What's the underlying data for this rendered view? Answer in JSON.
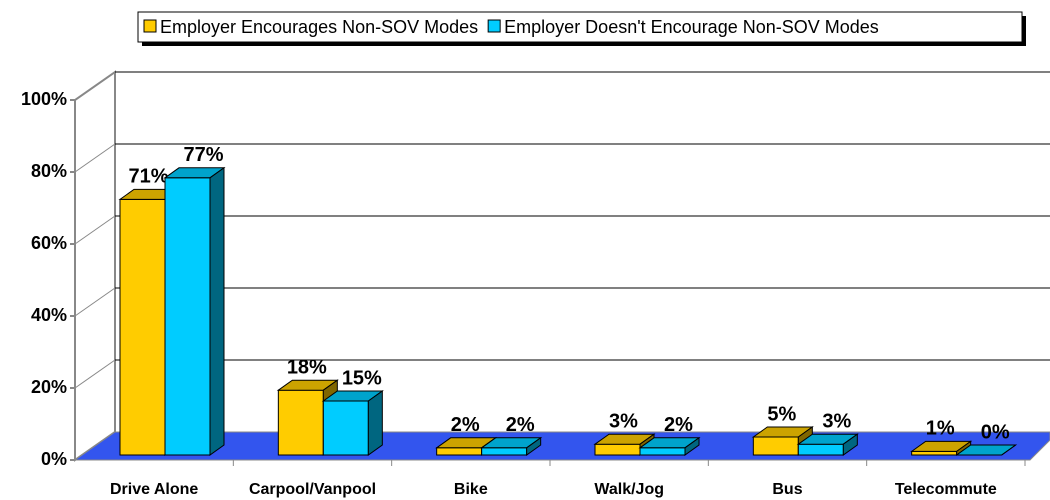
{
  "chart_data": {
    "type": "bar3d",
    "categories": [
      "Drive Alone",
      "Carpool/Vanpool",
      "Bike",
      "Walk/Jog",
      "Bus",
      "Telecommute"
    ],
    "series": [
      {
        "name": "Employer Encourages Non-SOV Modes",
        "color": "#ffcc00",
        "values": [
          71,
          18,
          2,
          3,
          5,
          1
        ],
        "value_labels": [
          "71%",
          "18%",
          "2%",
          "3%",
          "5%",
          "1%"
        ]
      },
      {
        "name": "Employer Doesn't Encourage Non-SOV Modes",
        "color": "#00ccff",
        "values": [
          77,
          15,
          2,
          2,
          3,
          0
        ],
        "value_labels": [
          "77%",
          "15%",
          "2%",
          "2%",
          "3%",
          "0%"
        ]
      }
    ],
    "ylim": [
      0,
      100
    ],
    "yticks": [
      {
        "value": 0,
        "label": "0%"
      },
      {
        "value": 20,
        "label": "20%"
      },
      {
        "value": 40,
        "label": "40%"
      },
      {
        "value": 60,
        "label": "60%"
      },
      {
        "value": 80,
        "label": "80%"
      },
      {
        "value": 100,
        "label": "100%"
      }
    ],
    "grid": true,
    "legend": "top",
    "floor_color": "#3355ee"
  }
}
